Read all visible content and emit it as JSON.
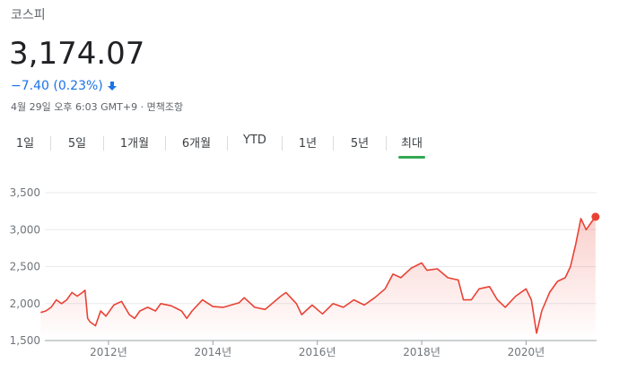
{
  "header": {
    "name": "코스피",
    "price": "3,174.07",
    "change": "−7.40 (0.23%)",
    "timestamp": "4월 29일 오후 6:03 GMT+9 ·",
    "disclaimer": "면책조항"
  },
  "tabs": {
    "items": [
      "1일",
      "5일",
      "1개월",
      "6개월",
      "YTD",
      "1년",
      "5년",
      "최대"
    ],
    "selected": 7
  },
  "chart_data": {
    "type": "line",
    "x": [
      2010.7,
      2010.8,
      2010.9,
      2011.0,
      2011.1,
      2011.2,
      2011.3,
      2011.4,
      2011.5,
      2011.55,
      2011.6,
      2011.65,
      2011.75,
      2011.85,
      2011.95,
      2012.1,
      2012.25,
      2012.4,
      2012.5,
      2012.6,
      2012.75,
      2012.9,
      2013.0,
      2013.2,
      2013.4,
      2013.5,
      2013.6,
      2013.8,
      2014.0,
      2014.2,
      2014.5,
      2014.6,
      2014.8,
      2015.0,
      2015.3,
      2015.4,
      2015.6,
      2015.7,
      2015.9,
      2016.1,
      2016.3,
      2016.5,
      2016.7,
      2016.9,
      2017.1,
      2017.3,
      2017.45,
      2017.6,
      2017.8,
      2018.0,
      2018.1,
      2018.3,
      2018.5,
      2018.7,
      2018.8,
      2018.95,
      2019.1,
      2019.3,
      2019.45,
      2019.6,
      2019.8,
      2020.0,
      2020.1,
      2020.2,
      2020.3,
      2020.45,
      2020.6,
      2020.75,
      2020.85,
      2020.95,
      2021.05,
      2021.15,
      2021.25,
      2021.33
    ],
    "series": [
      {
        "color": "#e94235",
        "values": [
          1880,
          1900,
          1950,
          2050,
          2000,
          2050,
          2150,
          2100,
          2150,
          2180,
          1800,
          1750,
          1700,
          1900,
          1830,
          1980,
          2030,
          1850,
          1800,
          1900,
          1950,
          1900,
          2000,
          1970,
          1900,
          1800,
          1900,
          2050,
          1960,
          1950,
          2010,
          2080,
          1950,
          1920,
          2100,
          2150,
          2000,
          1850,
          1980,
          1860,
          2000,
          1950,
          2050,
          1980,
          2080,
          2200,
          2400,
          2350,
          2480,
          2550,
          2450,
          2470,
          2350,
          2320,
          2050,
          2050,
          2200,
          2230,
          2050,
          1950,
          2100,
          2200,
          2050,
          1600,
          1900,
          2150,
          2300,
          2350,
          2500,
          2800,
          3150,
          3000,
          3100,
          3174.07
        ]
      }
    ],
    "xlim": [
      2010.66,
      2021.35
    ],
    "xticks": [
      {
        "value": 2012,
        "label": "2012년"
      },
      {
        "value": 2014,
        "label": "2014년"
      },
      {
        "value": 2016,
        "label": "2016년"
      },
      {
        "value": 2018,
        "label": "2018년"
      },
      {
        "value": 2020,
        "label": "2020년"
      }
    ],
    "ylim": [
      1500,
      3500
    ],
    "yticks": [
      {
        "value": 1500,
        "label": "1,500"
      },
      {
        "value": 2000,
        "label": "2,000"
      },
      {
        "value": 2500,
        "label": "2,500"
      },
      {
        "value": 3000,
        "label": "3,000"
      },
      {
        "value": 3500,
        "label": "3,500"
      }
    ],
    "grid": true
  }
}
